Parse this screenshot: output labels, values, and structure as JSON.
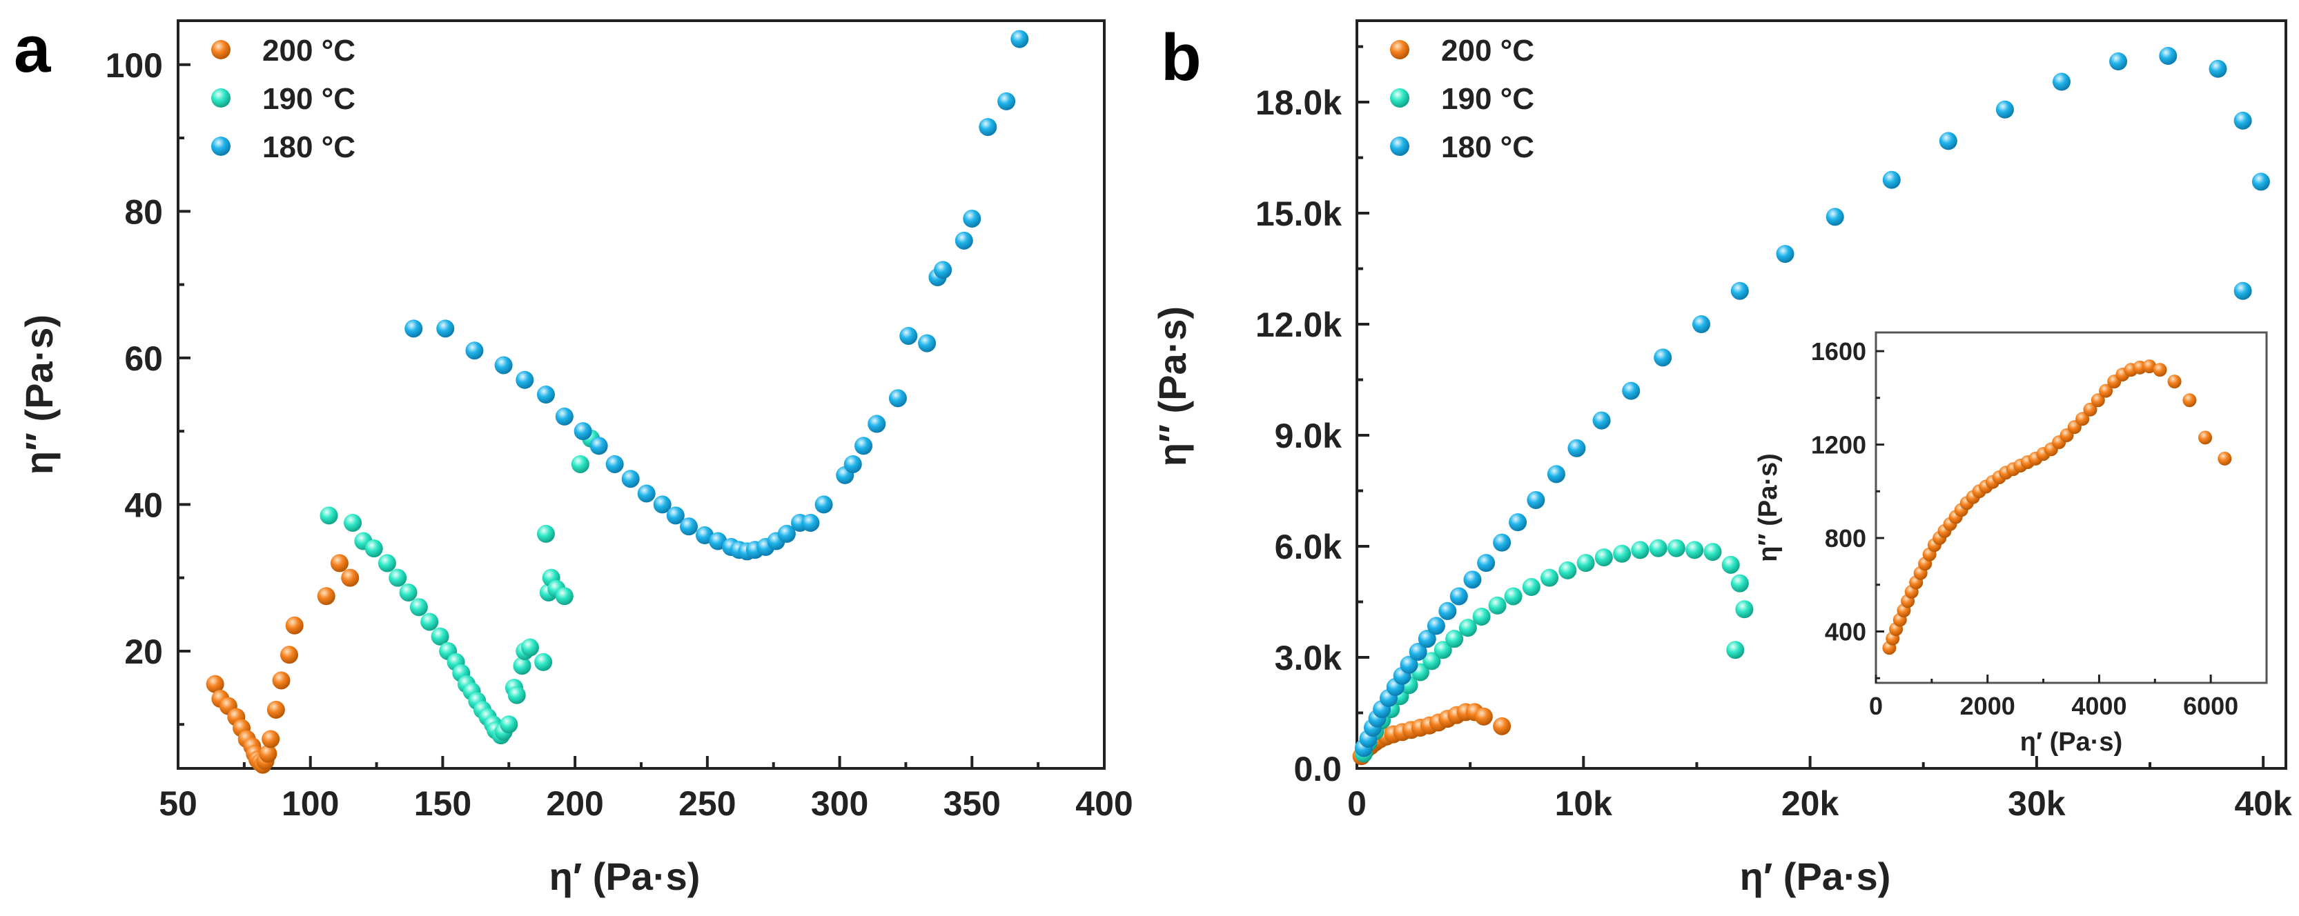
{
  "colors": {
    "s200": "#f58220",
    "s190": "#2ee8c6",
    "s180": "#1fb4ea",
    "axis": "#222222"
  },
  "chart_data": [
    {
      "type": "scatter",
      "panel_letter": "a",
      "xlabel": "η′ (Pa·s)",
      "ylabel": "η″ (Pa·s)",
      "xlim": [
        50,
        400
      ],
      "ylim": [
        4,
        106
      ],
      "xticks": [
        50,
        100,
        150,
        200,
        250,
        300,
        350,
        400
      ],
      "yticks": [
        20,
        40,
        60,
        80,
        100
      ],
      "legend_position": "top-left",
      "series": [
        {
          "name": "200 °C",
          "color_key": "s200",
          "points": [
            [
              64,
              15.5
            ],
            [
              66,
              13.5
            ],
            [
              69,
              12.5
            ],
            [
              72,
              11
            ],
            [
              74,
              9.5
            ],
            [
              76,
              8
            ],
            [
              78,
              7
            ],
            [
              79,
              6
            ],
            [
              80,
              5.2
            ],
            [
              81,
              4.8
            ],
            [
              82,
              4.5
            ],
            [
              83,
              5
            ],
            [
              84,
              6
            ],
            [
              85,
              8
            ],
            [
              87,
              12
            ],
            [
              89,
              16
            ],
            [
              92,
              19.5
            ],
            [
              94,
              23.5
            ],
            [
              106,
              27.5
            ],
            [
              111,
              32
            ],
            [
              115,
              30
            ]
          ]
        },
        {
          "name": "190 °C",
          "color_key": "s190",
          "points": [
            [
              107,
              38.5
            ],
            [
              116,
              37.5
            ],
            [
              120,
              35
            ],
            [
              124,
              34
            ],
            [
              129,
              32
            ],
            [
              133,
              30
            ],
            [
              137,
              28
            ],
            [
              141,
              26
            ],
            [
              145,
              24
            ],
            [
              149,
              22
            ],
            [
              152,
              20
            ],
            [
              155,
              18.5
            ],
            [
              157,
              17
            ],
            [
              159,
              15.5
            ],
            [
              161,
              14.5
            ],
            [
              163,
              13.2
            ],
            [
              165,
              12
            ],
            [
              167,
              11
            ],
            [
              169,
              10
            ],
            [
              170,
              9.2
            ],
            [
              172,
              8.5
            ],
            [
              173,
              9
            ],
            [
              175,
              10
            ],
            [
              177,
              15
            ],
            [
              178,
              14
            ],
            [
              180,
              18
            ],
            [
              181,
              20
            ],
            [
              183,
              20.5
            ],
            [
              188,
              18.5
            ],
            [
              189,
              36
            ],
            [
              190,
              28
            ],
            [
              191,
              30
            ],
            [
              193,
              28.5
            ],
            [
              196,
              27.5
            ],
            [
              202,
              45.5
            ],
            [
              206,
              49
            ]
          ]
        },
        {
          "name": "180 °C",
          "color_key": "s180",
          "points": [
            [
              139,
              64
            ],
            [
              151,
              64
            ],
            [
              162,
              61
            ],
            [
              173,
              59
            ],
            [
              181,
              57
            ],
            [
              189,
              55
            ],
            [
              196,
              52
            ],
            [
              203,
              50
            ],
            [
              209,
              48
            ],
            [
              215,
              45.5
            ],
            [
              221,
              43.5
            ],
            [
              227,
              41.5
            ],
            [
              233,
              40
            ],
            [
              238,
              38.5
            ],
            [
              243,
              37
            ],
            [
              249,
              35.8
            ],
            [
              254,
              35
            ],
            [
              259,
              34.2
            ],
            [
              262,
              33.8
            ],
            [
              265,
              33.6
            ],
            [
              268,
              33.8
            ],
            [
              272,
              34.2
            ],
            [
              276,
              35
            ],
            [
              280,
              36
            ],
            [
              285,
              37.5
            ],
            [
              289,
              37.5
            ],
            [
              294,
              40
            ],
            [
              302,
              44
            ],
            [
              305,
              45.5
            ],
            [
              309,
              48
            ],
            [
              314,
              51
            ],
            [
              322,
              54.5
            ],
            [
              326,
              63
            ],
            [
              333,
              62
            ],
            [
              337,
              71
            ],
            [
              339,
              72
            ],
            [
              347,
              76
            ],
            [
              350,
              79
            ],
            [
              356,
              91.5
            ],
            [
              363,
              95
            ],
            [
              368,
              103.5
            ]
          ]
        }
      ]
    },
    {
      "type": "scatter",
      "panel_letter": "b",
      "xlabel": "η′ (Pa·s)",
      "ylabel": "η″ (Pa·s)",
      "xlim": [
        0,
        41000
      ],
      "ylim": [
        0,
        20200
      ],
      "xticks": [
        0,
        10000,
        20000,
        30000,
        40000
      ],
      "xtick_labels": [
        "0",
        "10k",
        "20k",
        "30k",
        "40k"
      ],
      "yticks": [
        0,
        3000,
        6000,
        9000,
        12000,
        15000,
        18000
      ],
      "ytick_labels": [
        "0.0",
        "3.0k",
        "6.0k",
        "9.0k",
        "12.0k",
        "15.0k",
        "18.0k"
      ],
      "legend_position": "top-left",
      "series": [
        {
          "name": "200 °C",
          "color_key": "s200",
          "points": [
            [
              200,
              330
            ],
            [
              300,
              420
            ],
            [
              400,
              500
            ],
            [
              600,
              600
            ],
            [
              800,
              700
            ],
            [
              1000,
              780
            ],
            [
              1300,
              860
            ],
            [
              1600,
              920
            ],
            [
              2000,
              980
            ],
            [
              2400,
              1040
            ],
            [
              2800,
              1100
            ],
            [
              3200,
              1160
            ],
            [
              3600,
              1240
            ],
            [
              4000,
              1340
            ],
            [
              4400,
              1440
            ],
            [
              4800,
              1520
            ],
            [
              5200,
              1520
            ],
            [
              5600,
              1400
            ],
            [
              6400,
              1140
            ]
          ]
        },
        {
          "name": "190 °C",
          "color_key": "s190",
          "points": [
            [
              300,
              400
            ],
            [
              500,
              700
            ],
            [
              800,
              1000
            ],
            [
              1100,
              1300
            ],
            [
              1500,
              1600
            ],
            [
              1900,
              1950
            ],
            [
              2300,
              2250
            ],
            [
              2800,
              2600
            ],
            [
              3300,
              2900
            ],
            [
              3800,
              3200
            ],
            [
              4300,
              3500
            ],
            [
              4900,
              3800
            ],
            [
              5500,
              4100
            ],
            [
              6200,
              4400
            ],
            [
              6900,
              4650
            ],
            [
              7700,
              4900
            ],
            [
              8500,
              5150
            ],
            [
              9300,
              5350
            ],
            [
              10100,
              5550
            ],
            [
              10900,
              5700
            ],
            [
              11700,
              5800
            ],
            [
              12500,
              5900
            ],
            [
              13300,
              5950
            ],
            [
              14100,
              5950
            ],
            [
              14900,
              5900
            ],
            [
              15700,
              5850
            ],
            [
              16500,
              5500
            ],
            [
              16900,
              5000
            ],
            [
              17100,
              4300
            ],
            [
              16700,
              3200
            ]
          ]
        },
        {
          "name": "180 °C",
          "color_key": "s180",
          "points": [
            [
              300,
              550
            ],
            [
              500,
              800
            ],
            [
              700,
              1100
            ],
            [
              900,
              1350
            ],
            [
              1100,
              1600
            ],
            [
              1400,
              1900
            ],
            [
              1700,
              2200
            ],
            [
              2000,
              2500
            ],
            [
              2300,
              2800
            ],
            [
              2700,
              3150
            ],
            [
              3100,
              3500
            ],
            [
              3500,
              3850
            ],
            [
              4000,
              4250
            ],
            [
              4500,
              4650
            ],
            [
              5100,
              5100
            ],
            [
              5700,
              5550
            ],
            [
              6400,
              6100
            ],
            [
              7100,
              6650
            ],
            [
              7900,
              7250
            ],
            [
              8800,
              7950
            ],
            [
              9700,
              8650
            ],
            [
              10800,
              9400
            ],
            [
              12100,
              10200
            ],
            [
              13500,
              11100
            ],
            [
              15200,
              12000
            ],
            [
              16900,
              12900
            ],
            [
              18900,
              13900
            ],
            [
              21100,
              14900
            ],
            [
              23600,
              15900
            ],
            [
              26100,
              16950
            ],
            [
              28600,
              17800
            ],
            [
              31100,
              18550
            ],
            [
              33600,
              19100
            ],
            [
              35800,
              19250
            ],
            [
              38000,
              18900
            ],
            [
              39100,
              17500
            ],
            [
              39900,
              15850
            ],
            [
              39100,
              12900
            ]
          ]
        }
      ],
      "inset": {
        "xlim": [
          0,
          7000
        ],
        "ylim": [
          180,
          1680
        ],
        "xticks": [
          0,
          2000,
          4000,
          6000
        ],
        "xtick_labels": [
          "0",
          "2000",
          "4000",
          "6000"
        ],
        "yticks": [
          400,
          800,
          1200,
          1600
        ],
        "ytick_labels": [
          "400",
          "800",
          "1200",
          "1600"
        ],
        "xlabel": "η′ (Pa·s)",
        "ylabel": "η″ (Pa·s)",
        "series_name": "200 °C",
        "color_key": "s200",
        "points": [
          [
            240,
            330
          ],
          [
            300,
            370
          ],
          [
            360,
            410
          ],
          [
            430,
            450
          ],
          [
            500,
            490
          ],
          [
            570,
            530
          ],
          [
            640,
            570
          ],
          [
            720,
            610
          ],
          [
            800,
            650
          ],
          [
            880,
            690
          ],
          [
            960,
            730
          ],
          [
            1050,
            770
          ],
          [
            1140,
            800
          ],
          [
            1230,
            830
          ],
          [
            1330,
            860
          ],
          [
            1430,
            890
          ],
          [
            1530,
            920
          ],
          [
            1630,
            950
          ],
          [
            1740,
            975
          ],
          [
            1850,
            1000
          ],
          [
            1970,
            1020
          ],
          [
            2090,
            1040
          ],
          [
            2210,
            1060
          ],
          [
            2330,
            1080
          ],
          [
            2460,
            1095
          ],
          [
            2590,
            1110
          ],
          [
            2720,
            1125
          ],
          [
            2860,
            1140
          ],
          [
            3000,
            1160
          ],
          [
            3140,
            1180
          ],
          [
            3280,
            1210
          ],
          [
            3420,
            1240
          ],
          [
            3560,
            1275
          ],
          [
            3700,
            1310
          ],
          [
            3840,
            1350
          ],
          [
            3980,
            1390
          ],
          [
            4120,
            1430
          ],
          [
            4270,
            1470
          ],
          [
            4420,
            1500
          ],
          [
            4570,
            1520
          ],
          [
            4730,
            1530
          ],
          [
            4900,
            1535
          ],
          [
            5090,
            1520
          ],
          [
            5350,
            1470
          ],
          [
            5620,
            1390
          ],
          [
            5900,
            1230
          ],
          [
            6250,
            1140
          ]
        ]
      }
    }
  ]
}
